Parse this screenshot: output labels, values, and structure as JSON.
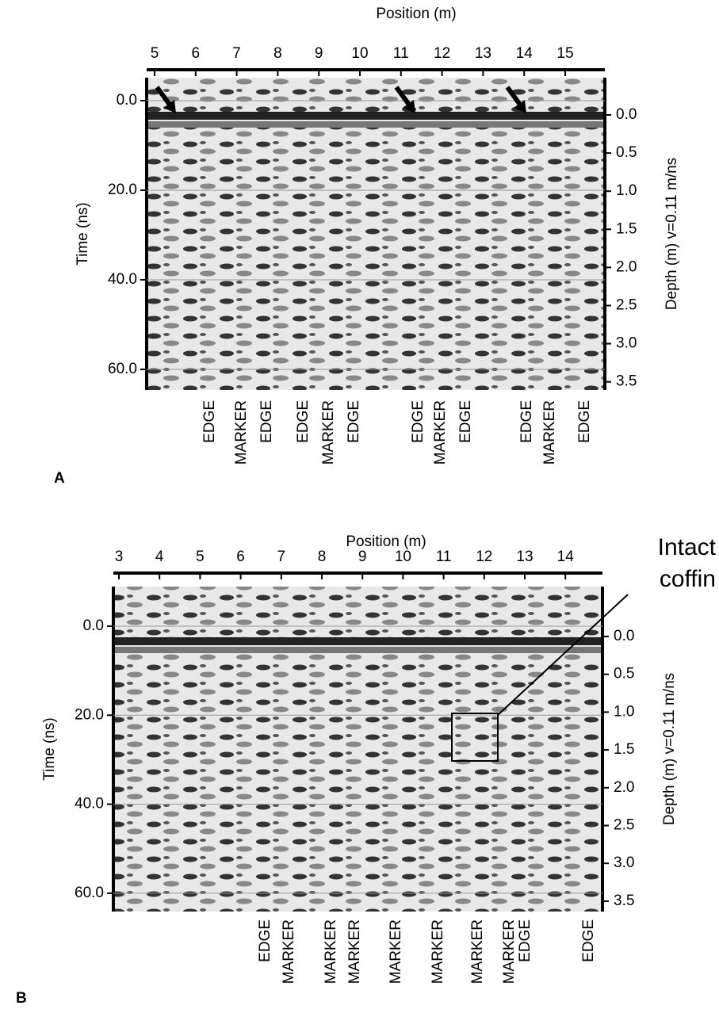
{
  "panels": [
    {
      "label": "A",
      "x_axis": {
        "title": "Position (m)",
        "ticks": [
          "5",
          "6",
          "7",
          "8",
          "9",
          "10",
          "11",
          "12",
          "13",
          "14",
          "15"
        ]
      },
      "y_axis": {
        "title": "Time (ns)",
        "ticks": [
          "0.0",
          "20.0",
          "40.0",
          "60.0"
        ]
      },
      "y2_axis": {
        "title": "Depth (m) v=0.11 m/ns",
        "ticks": [
          "0.0",
          "0.5",
          "1.0",
          "1.5",
          "2.0",
          "2.5",
          "3.0",
          "3.5"
        ]
      },
      "annotations": [
        "EDGE",
        "MARKER",
        "EDGE",
        "EDGE",
        "MARKER",
        "EDGE",
        "EDGE",
        "MARKER",
        "EDGE",
        "EDGE",
        "MARKER",
        "EDGE"
      ]
    },
    {
      "label": "B",
      "x_axis": {
        "title": "Position (m)",
        "ticks": [
          "3",
          "4",
          "5",
          "6",
          "7",
          "8",
          "9",
          "10",
          "11",
          "12",
          "13",
          "14"
        ]
      },
      "y_axis": {
        "title": "Time (ns)",
        "ticks": [
          "0.0",
          "20.0",
          "40.0",
          "60.0"
        ]
      },
      "y2_axis": {
        "title": "Depth (m) v=0.11 m/ns",
        "ticks": [
          "0.0",
          "0.5",
          "1.0",
          "1.5",
          "2.0",
          "2.5",
          "3.0",
          "3.5"
        ]
      },
      "annotations": [
        "EDGE",
        "MARKER",
        "MARKER",
        "MARKER",
        "MARKER",
        "MARKER",
        "MARKER",
        "MARKER",
        "EDGE",
        "EDGE"
      ],
      "callout": [
        "Intact",
        "coffin"
      ]
    }
  ]
}
